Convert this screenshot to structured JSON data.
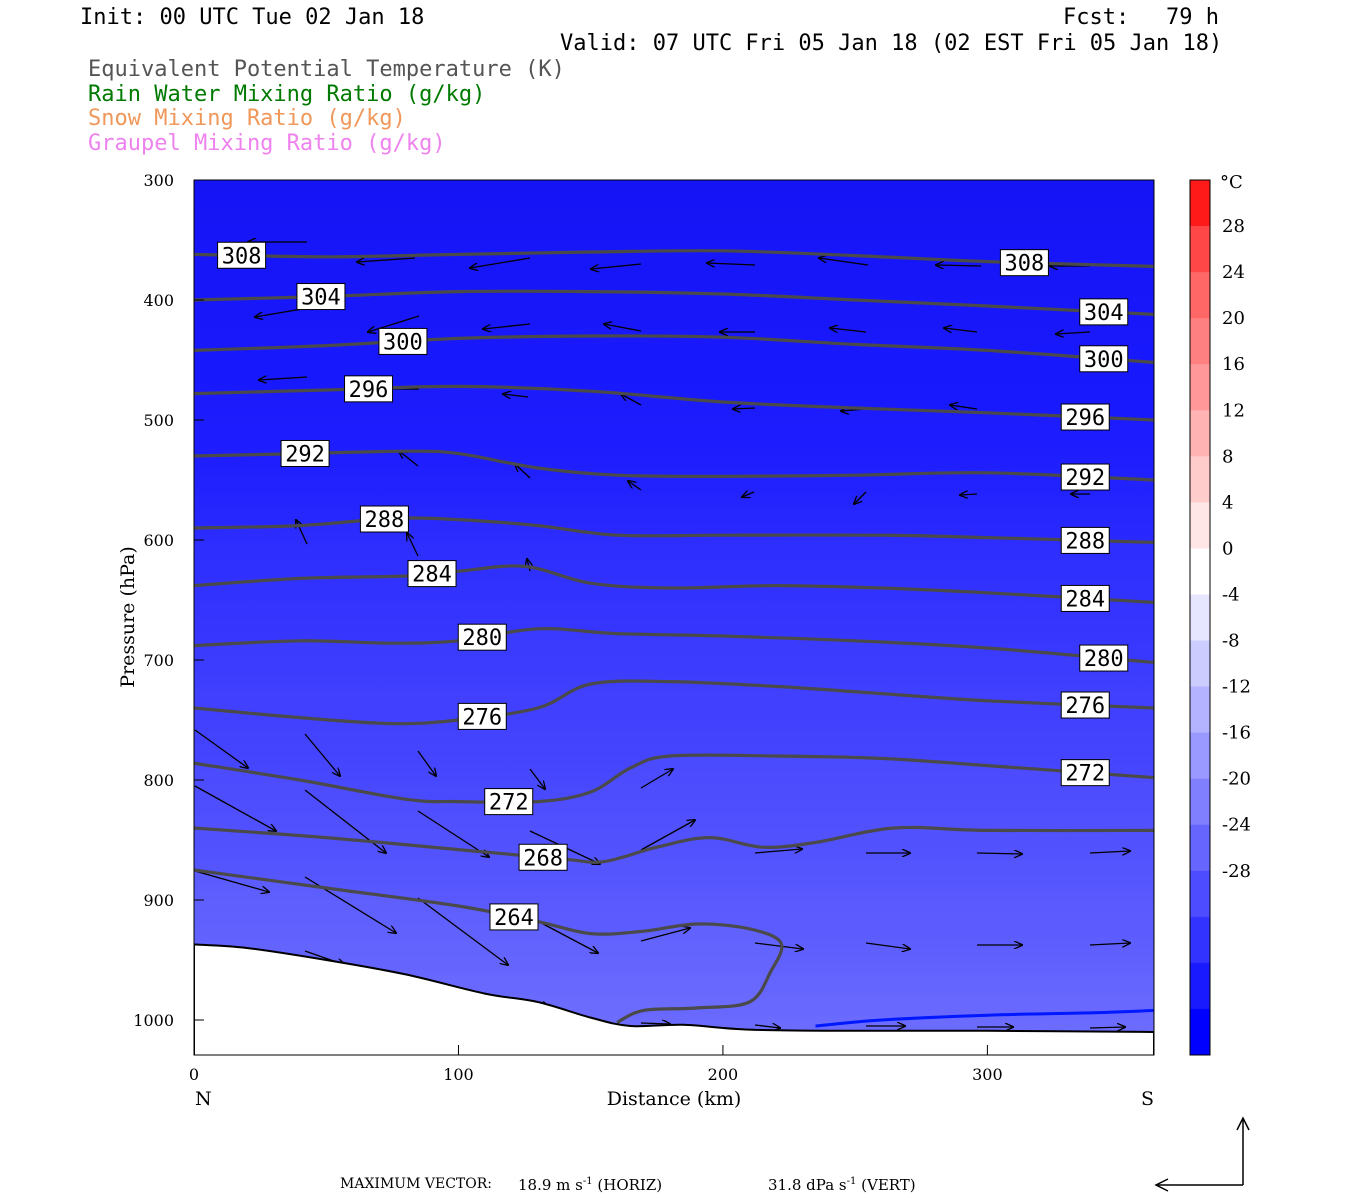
{
  "header": {
    "init": "Init: 00 UTC Tue 02 Jan 18",
    "fcst_label": "Fcst:",
    "fcst_value": "79 h",
    "valid": "Valid: 07 UTC Fri 05 Jan 18 (02 EST Fri 05 Jan 18)"
  },
  "legend": {
    "items": [
      {
        "label": "Equivalent Potential Temperature (K)",
        "color": "#555555"
      },
      {
        "label": "Rain Water Mixing Ratio (g/kg)",
        "color": "#007a00"
      },
      {
        "label": "Snow Mixing Ratio (g/kg)",
        "color": "#f0975a"
      },
      {
        "label": "Graupel Mixing Ratio (g/kg)",
        "color": "#ee82ee"
      }
    ]
  },
  "footer": {
    "max_vector_label": "MAXIMUM VECTOR:",
    "horiz_value": "18.9 m s",
    "horiz_exp": "-1",
    "horiz_tag": "(HORIZ)",
    "vert_value": "31.8 dPa s",
    "vert_exp": "-1",
    "vert_tag": "(VERT)"
  },
  "chart_data": {
    "type": "contour",
    "title": "",
    "xlabel": "Distance (km)",
    "ylabel": "Pressure (hPa)",
    "xlim": [
      0,
      363
    ],
    "ylim": [
      1030,
      300
    ],
    "x_ticks": [
      0,
      100,
      200,
      300
    ],
    "y_ticks": [
      300,
      400,
      500,
      600,
      700,
      800,
      900,
      1000
    ],
    "x_end_labels": {
      "left": "N",
      "right": "S"
    },
    "colorbar": {
      "unit": "°C",
      "ticks": [
        28,
        24,
        20,
        16,
        12,
        8,
        4,
        0,
        -4,
        -8,
        -12,
        -16,
        -20,
        -24,
        -28
      ],
      "colors": [
        "#ff1a1a",
        "#ff4747",
        "#ff6666",
        "#ff8080",
        "#ff9999",
        "#ffb3b3",
        "#ffcccc",
        "#ffe6e6",
        "#ffffff",
        "#e6e6ff",
        "#ccccff",
        "#b3b3ff",
        "#9999ff",
        "#8080ff",
        "#6666ff",
        "#4d4dff",
        "#3333ff",
        "#1a1aff",
        "#0000ff"
      ]
    },
    "theta_e_contours": [
      {
        "level": 308,
        "points": [
          [
            0,
            362
          ],
          [
            50,
            364
          ],
          [
            100,
            362
          ],
          [
            150,
            360
          ],
          [
            200,
            359
          ],
          [
            250,
            363
          ],
          [
            300,
            368
          ],
          [
            363,
            372
          ]
        ]
      },
      {
        "level": 304,
        "points": [
          [
            0,
            400
          ],
          [
            50,
            397
          ],
          [
            100,
            393
          ],
          [
            150,
            393
          ],
          [
            200,
            395
          ],
          [
            250,
            400
          ],
          [
            300,
            405
          ],
          [
            363,
            412
          ]
        ]
      },
      {
        "level": 300,
        "points": [
          [
            0,
            442
          ],
          [
            50,
            438
          ],
          [
            100,
            432
          ],
          [
            150,
            430
          ],
          [
            200,
            431
          ],
          [
            250,
            437
          ],
          [
            300,
            442
          ],
          [
            363,
            452
          ]
        ]
      },
      {
        "level": 296,
        "points": [
          [
            0,
            478
          ],
          [
            50,
            475
          ],
          [
            100,
            472
          ],
          [
            150,
            476
          ],
          [
            200,
            485
          ],
          [
            250,
            490
          ],
          [
            300,
            494
          ],
          [
            363,
            500
          ]
        ]
      },
      {
        "level": 292,
        "points": [
          [
            0,
            530
          ],
          [
            40,
            528
          ],
          [
            80,
            526
          ],
          [
            100,
            528
          ],
          [
            130,
            540
          ],
          [
            160,
            546
          ],
          [
            200,
            547
          ],
          [
            250,
            546
          ],
          [
            300,
            544
          ],
          [
            363,
            550
          ]
        ]
      },
      {
        "level": 288,
        "points": [
          [
            0,
            590
          ],
          [
            40,
            588
          ],
          [
            75,
            582
          ],
          [
            100,
            583
          ],
          [
            130,
            588
          ],
          [
            160,
            596
          ],
          [
            200,
            596
          ],
          [
            260,
            596
          ],
          [
            300,
            598
          ],
          [
            363,
            602
          ]
        ]
      },
      {
        "level": 284,
        "points": [
          [
            0,
            638
          ],
          [
            40,
            632
          ],
          [
            80,
            630
          ],
          [
            100,
            626
          ],
          [
            125,
            622
          ],
          [
            150,
            636
          ],
          [
            180,
            640
          ],
          [
            220,
            638
          ],
          [
            260,
            640
          ],
          [
            300,
            644
          ],
          [
            363,
            652
          ]
        ]
      },
      {
        "level": 280,
        "points": [
          [
            0,
            688
          ],
          [
            40,
            684
          ],
          [
            75,
            686
          ],
          [
            100,
            684
          ],
          [
            130,
            674
          ],
          [
            160,
            678
          ],
          [
            200,
            680
          ],
          [
            250,
            684
          ],
          [
            300,
            690
          ],
          [
            363,
            702
          ]
        ]
      },
      {
        "level": 276,
        "points": [
          [
            0,
            740
          ],
          [
            40,
            748
          ],
          [
            75,
            753
          ],
          [
            100,
            750
          ],
          [
            130,
            740
          ],
          [
            150,
            720
          ],
          [
            180,
            718
          ],
          [
            220,
            722
          ],
          [
            260,
            728
          ],
          [
            300,
            734
          ],
          [
            363,
            740
          ]
        ]
      },
      {
        "level": 272,
        "points": [
          [
            0,
            786
          ],
          [
            40,
            800
          ],
          [
            80,
            816
          ],
          [
            100,
            818
          ],
          [
            130,
            818
          ],
          [
            150,
            810
          ],
          [
            165,
            790
          ],
          [
            180,
            780
          ],
          [
            220,
            780
          ],
          [
            260,
            782
          ],
          [
            300,
            788
          ],
          [
            363,
            798
          ]
        ]
      },
      {
        "level": 268,
        "points": [
          [
            0,
            840
          ],
          [
            50,
            848
          ],
          [
            100,
            858
          ],
          [
            140,
            866
          ],
          [
            155,
            868
          ],
          [
            175,
            856
          ],
          [
            195,
            848
          ],
          [
            215,
            856
          ],
          [
            235,
            852
          ],
          [
            265,
            840
          ],
          [
            300,
            842
          ],
          [
            363,
            842
          ]
        ]
      },
      {
        "level": 264,
        "points": [
          [
            0,
            875
          ],
          [
            50,
            890
          ],
          [
            100,
            905
          ],
          [
            130,
            918
          ],
          [
            150,
            928
          ],
          [
            170,
            926
          ],
          [
            190,
            920
          ],
          [
            210,
            924
          ],
          [
            222,
            936
          ],
          [
            218,
            960
          ],
          [
            210,
            985
          ],
          [
            190,
            990
          ],
          [
            170,
            992
          ],
          [
            160,
            1002
          ]
        ]
      }
    ],
    "rain_contour": [
      [
        235,
        1005
      ],
      [
        260,
        1000
      ],
      [
        300,
        996
      ],
      [
        340,
        994
      ],
      [
        363,
        992
      ]
    ],
    "terrain": [
      [
        0,
        937
      ],
      [
        20,
        940
      ],
      [
        50,
        950
      ],
      [
        80,
        962
      ],
      [
        110,
        978
      ],
      [
        130,
        985
      ],
      [
        150,
        998
      ],
      [
        165,
        1005
      ],
      [
        185,
        1004
      ],
      [
        210,
        1008
      ],
      [
        250,
        1009
      ],
      [
        300,
        1009
      ],
      [
        363,
        1010
      ]
    ]
  }
}
